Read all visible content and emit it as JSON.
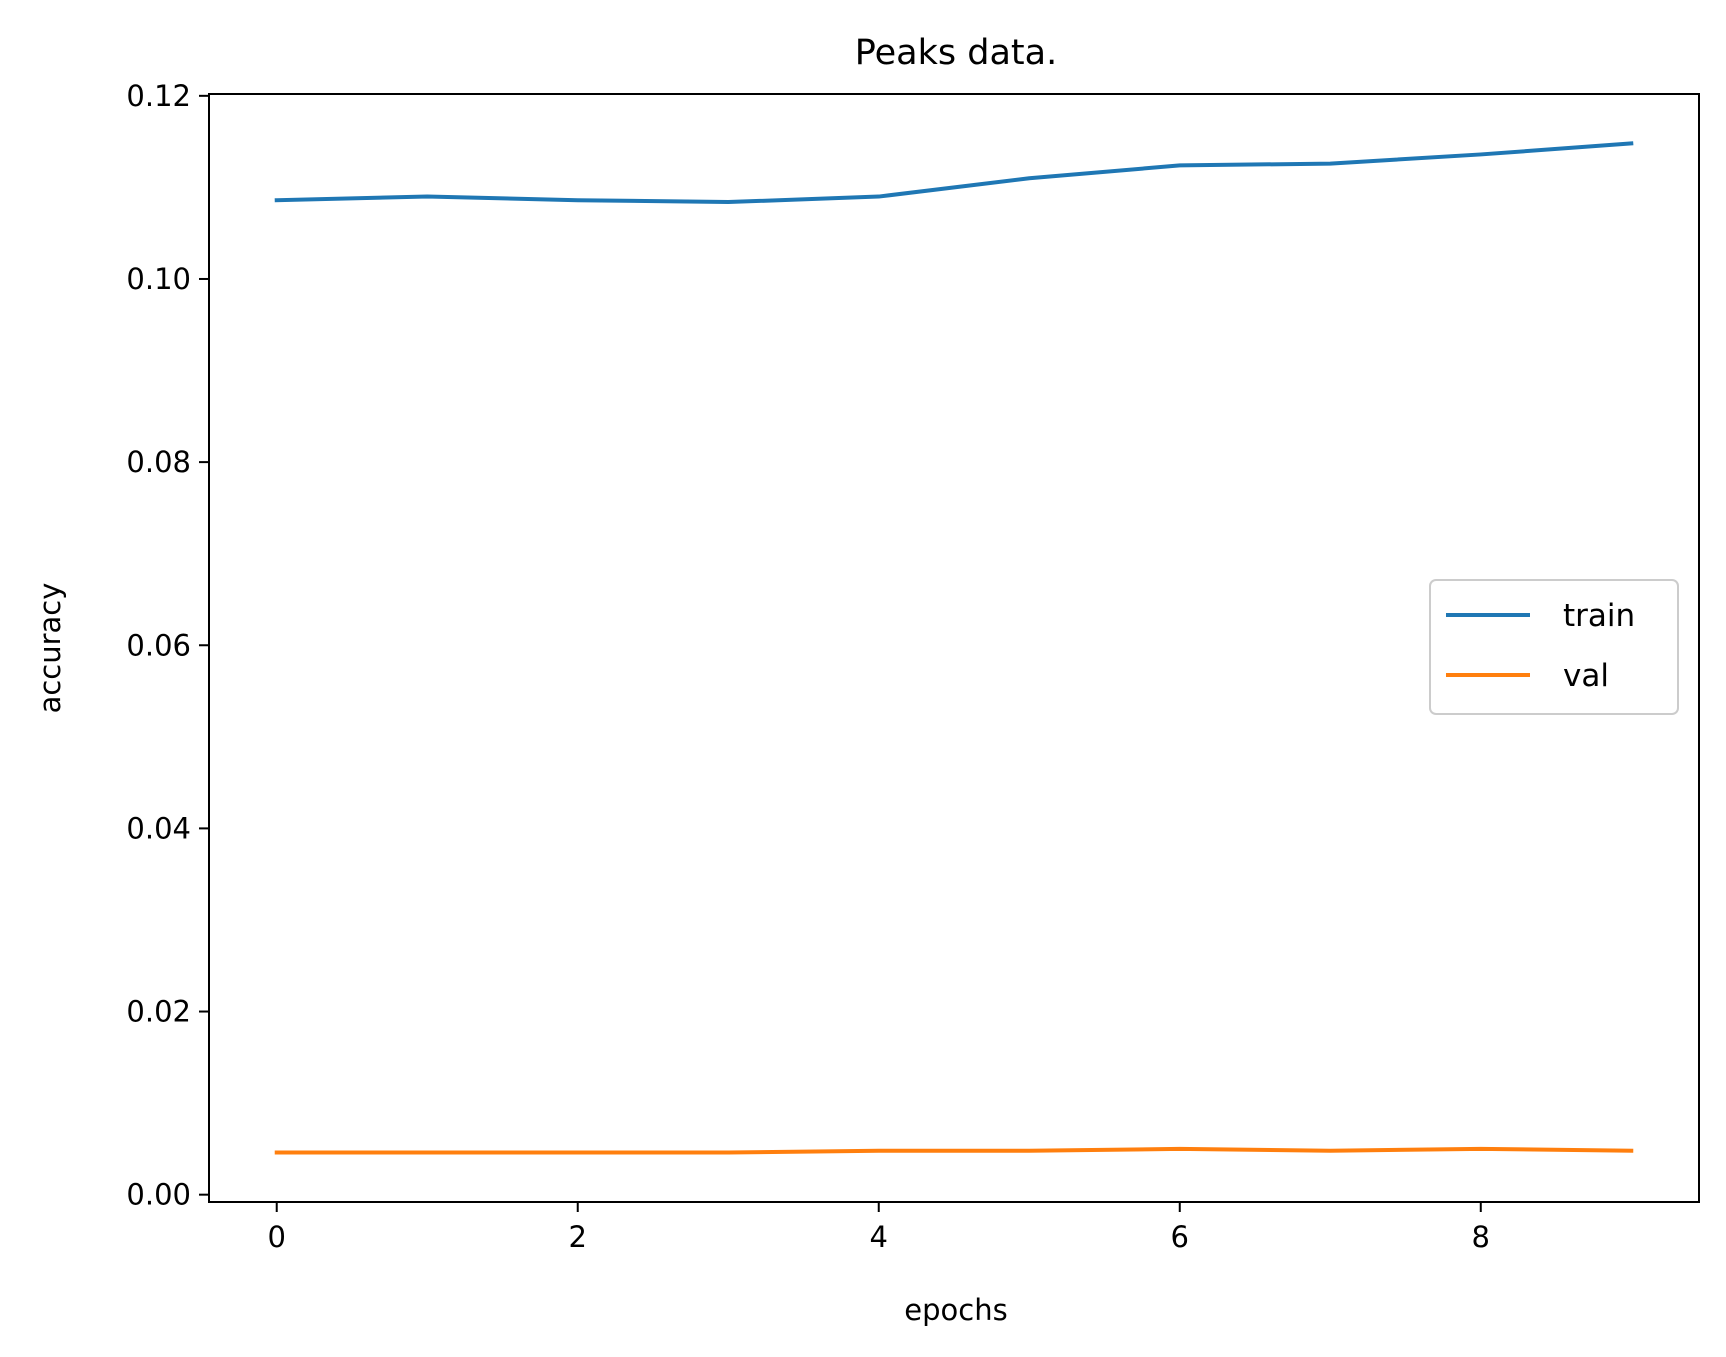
{
  "chart_data": {
    "type": "line",
    "title": "Peaks data.",
    "xlabel": "epochs",
    "ylabel": "accuracy",
    "xlim": [
      -0.45,
      9.45
    ],
    "ylim": [
      -0.0008,
      0.1202
    ],
    "xticks": [
      0,
      2,
      4,
      6,
      8
    ],
    "xtick_labels": [
      "0",
      "2",
      "4",
      "6",
      "8"
    ],
    "yticks": [
      0.0,
      0.02,
      0.04,
      0.06,
      0.08,
      0.1,
      0.12
    ],
    "ytick_labels": [
      "0.00",
      "0.02",
      "0.04",
      "0.06",
      "0.08",
      "0.10",
      "0.12"
    ],
    "grid": false,
    "legend_position": "center-right",
    "x": [
      0,
      1,
      2,
      3,
      4,
      5,
      6,
      7,
      8,
      9
    ],
    "series": [
      {
        "name": "train",
        "color": "#1f77b4",
        "values": [
          0.1086,
          0.109,
          0.1086,
          0.1084,
          0.109,
          0.111,
          0.1124,
          0.1126,
          0.1136,
          0.1148
        ]
      },
      {
        "name": "val",
        "color": "#ff7f0e",
        "values": [
          0.0046,
          0.0046,
          0.0046,
          0.0046,
          0.0048,
          0.0048,
          0.005,
          0.0048,
          0.005,
          0.0048
        ]
      }
    ]
  }
}
